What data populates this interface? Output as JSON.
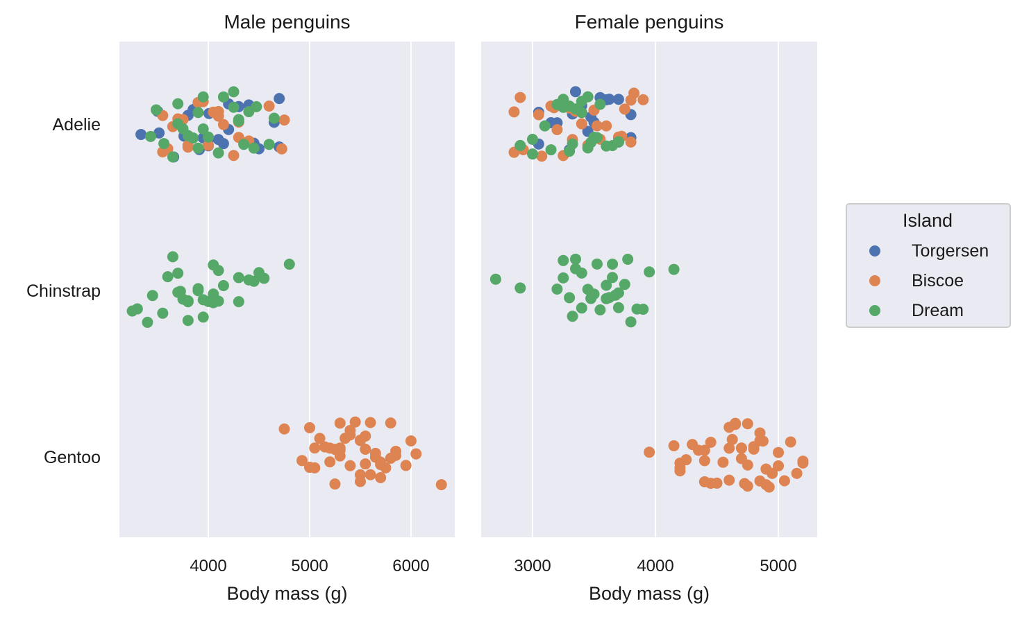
{
  "colors": {
    "Torgersen": "#4c72b0",
    "Biscoe": "#dd8452",
    "Dream": "#55a868",
    "panel_bg": "#eaeaf2",
    "grid": "#ffffff"
  },
  "legend": {
    "title": "Island",
    "entries": [
      "Torgersen",
      "Biscoe",
      "Dream"
    ],
    "placement": "right"
  },
  "chart_data": [
    {
      "type": "scatter",
      "title": "Male penguins",
      "xlabel": "Body mass (g)",
      "xlim": [
        3123,
        6432
      ],
      "xticks": [
        4000,
        5000,
        6000
      ],
      "xtick_labels": [
        "4000",
        "5000",
        "6000"
      ],
      "categories": [
        "Adelie",
        "Chinstrap",
        "Gentoo"
      ],
      "grid": true,
      "series": [
        {
          "name": "Torgersen",
          "values": {
            "Adelie": [
              3336,
              3500,
              3514,
              3658,
              3760,
              3800,
              3900,
              3911,
              3950,
              4000,
              4000,
              4007,
              4150,
              4200,
              4200,
              4300,
              4400,
              4450,
              4500,
              4700,
              4700,
              4650,
              4100,
              3800,
              3850
            ]
          }
        },
        {
          "name": "Biscoe",
          "values": {
            "Adelie": [
              3550,
              3550,
              3600,
              3700,
              3750,
              3800,
              3900,
              3950,
              4050,
              4100,
              4150,
              4250,
              4300,
              4400,
              4600,
              4750,
              4725,
              4000,
              4100,
              3650,
              3800,
              4300
            ],
            "Gentoo": [
              4750,
              4925,
              5000,
              5000,
              5050,
              5050,
              5100,
              5150,
              5200,
              5250,
              5250,
              5300,
              5300,
              5350,
              5400,
              5400,
              5450,
              5500,
              5500,
              5550,
              5550,
              5600,
              5650,
              5650,
              5700,
              5700,
              5750,
              5800,
              5800,
              5850,
              5850,
              5950,
              6000,
              6050,
              6300,
              5400,
              5300,
              5500,
              5200,
              5600,
              5550,
              5700,
              5300,
              5500
            ]
          }
        },
        {
          "name": "Dream",
          "values": {
            "Adelie": [
              3431,
              3486,
              3562,
              3650,
              3700,
              3700,
              3750,
              3800,
              3900,
              3950,
              4000,
              3950,
              4100,
              4150,
              4250,
              4300,
              4350,
              4400,
              4450,
              4475,
              4600,
              4650,
              4300,
              4250,
              3900,
              3850
            ],
            "Chinstrap": [
              3250,
              3300,
              3400,
              3450,
              3550,
              3600,
              3650,
              3700,
              3725,
              3750,
              3800,
              3800,
              3900,
              3950,
              3950,
              4000,
              4050,
              4050,
              4100,
              4100,
              4150,
              4300,
              4300,
              4400,
              4450,
              4500,
              4550,
              4800,
              3700,
              3800,
              4050,
              3900
            ]
          }
        }
      ]
    },
    {
      "type": "scatter",
      "title": "Female penguins",
      "xlabel": "Body mass (g)",
      "xlim": [
        2582,
        5316
      ],
      "xticks": [
        3000,
        4000,
        5000
      ],
      "xtick_labels": [
        "3000",
        "4000",
        "5000"
      ],
      "categories": [
        "Adelie",
        "Chinstrap",
        "Gentoo"
      ],
      "grid": true,
      "series": [
        {
          "name": "Torgersen",
          "values": {
            "Adelie": [
              2900,
              3050,
              3050,
              3150,
              3200,
              3250,
              3300,
              3325,
              3350,
              3450,
              3475,
              3550,
              3600,
              3625,
              3700,
              3700,
              3700,
              3800,
              3800,
              3400,
              3500
            ]
          }
        },
        {
          "name": "Biscoe",
          "values": {
            "Adelie": [
              2850,
              2850,
              2900,
              2925,
              3050,
              3075,
              3150,
              3175,
              3200,
              3250,
              3300,
              3325,
              3350,
              3450,
              3500,
              3525,
              3550,
              3600,
              3700,
              3725,
              3750,
              3800,
              3800,
              3825,
              3900,
              3400
            ],
            "Gentoo": [
              3950,
              4150,
              4200,
              4200,
              4250,
              4300,
              4350,
              4400,
              4400,
              4450,
              4450,
              4500,
              4550,
              4600,
              4600,
              4625,
              4650,
              4700,
              4700,
              4725,
              4750,
              4750,
              4800,
              4800,
              4850,
              4850,
              4875,
              4900,
              4900,
              4925,
              4950,
              5000,
              5000,
              5050,
              5100,
              5150,
              5200,
              5200,
              4700,
              4600,
              4400,
              4200,
              4650,
              4750,
              4850
            ]
          }
        },
        {
          "name": "Dream",
          "values": {
            "Adelie": [
              2900,
              3000,
              3000,
              3100,
              3150,
              3200,
              3250,
              3275,
              3300,
              3325,
              3350,
              3400,
              3450,
              3475,
              3500,
              3525,
              3550,
              3600,
              3650,
              3700,
              3300,
              3400,
              3450,
              3250
            ],
            "Chinstrap": [
              2700,
              2900,
              3200,
              3250,
              3250,
              3300,
              3325,
              3350,
              3350,
              3400,
              3400,
              3450,
              3475,
              3500,
              3525,
              3550,
              3600,
              3600,
              3625,
              3650,
              3650,
              3675,
              3700,
              3700,
              3750,
              3775,
              3800,
              3850,
              3900,
              3950,
              4150
            ]
          }
        }
      ]
    }
  ]
}
